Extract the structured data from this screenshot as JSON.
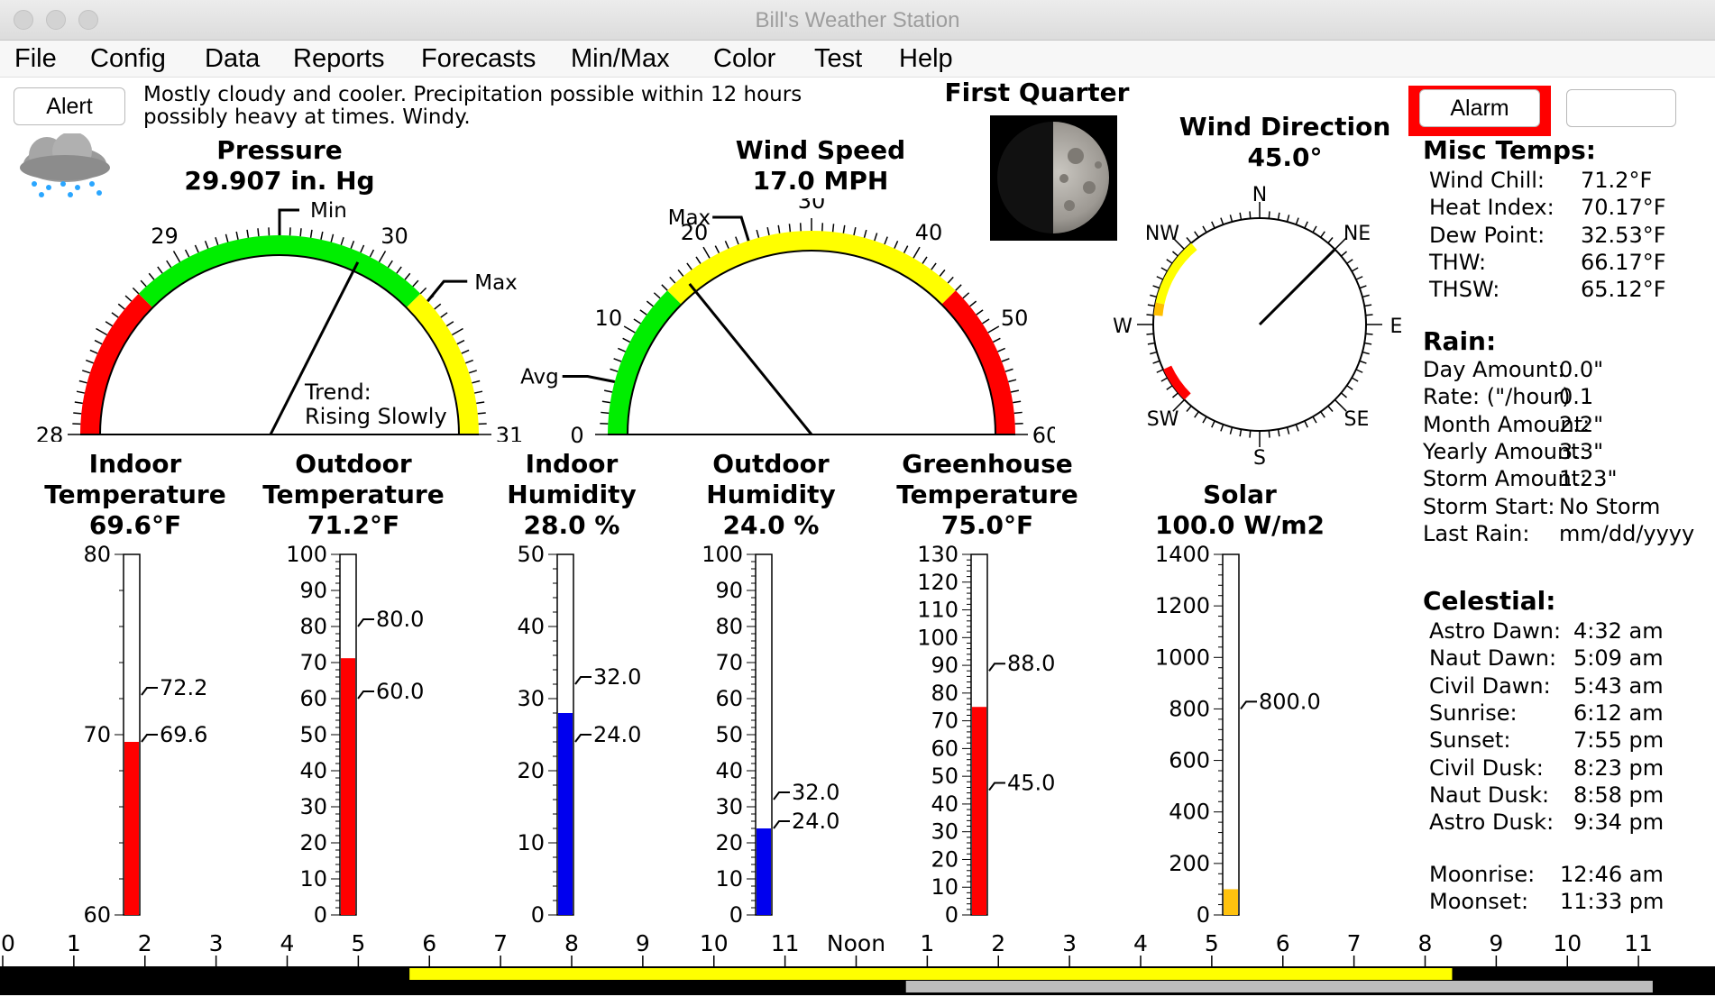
{
  "window": {
    "title": "Bill's Weather Station"
  },
  "menu": [
    "File",
    "Config",
    "Data",
    "Reports",
    "Forecasts",
    "Min/Max",
    "Color",
    "Test",
    "Help"
  ],
  "buttons": {
    "alert": "Alert",
    "alarm": "Alarm",
    "blank": ""
  },
  "forecast": {
    "line1": "Mostly cloudy and cooler. Precipitation possible within 12 hours",
    "line2": "possibly heavy at times. Windy."
  },
  "moon": {
    "phase": "First Quarter"
  },
  "icons": {
    "weather": "rain-cloud-icon",
    "moon": "moon-icon"
  },
  "pressure": {
    "title": "Pressure",
    "value": "29.907 in. Hg",
    "reading": 29.907,
    "scale": {
      "min": 28,
      "max": 31,
      "labels": [
        "28",
        "29",
        "30",
        "31"
      ]
    },
    "min_label": "Min",
    "max_label": "Max",
    "min_mark": 29.5,
    "max_mark": 30.3,
    "bands": [
      {
        "from": 28,
        "to": 28.75,
        "color": "#ff0000"
      },
      {
        "from": 28.75,
        "to": 30.25,
        "color": "#00ee00"
      },
      {
        "from": 30.25,
        "to": 31,
        "color": "#ffff00"
      }
    ],
    "trend_label": "Trend:",
    "trend": "Rising Slowly"
  },
  "wind_speed": {
    "title": "Wind Speed",
    "value": "17.0 MPH",
    "reading": 17.0,
    "scale": {
      "min": 0,
      "max": 60,
      "labels": [
        "0",
        "10",
        "20",
        "30",
        "40",
        "50",
        "60"
      ]
    },
    "max_label": "Max",
    "avg_label": "Avg",
    "max_mark": 24,
    "avg_mark": 5,
    "bands": [
      {
        "from": 0,
        "to": 15,
        "color": "#00ee00"
      },
      {
        "from": 15,
        "to": 45,
        "color": "#ffff00"
      },
      {
        "from": 45,
        "to": 60,
        "color": "#ff0000"
      }
    ]
  },
  "wind_direction": {
    "title": "Wind Direction",
    "value": "45.0°",
    "degrees": 45,
    "labels": [
      "N",
      "NE",
      "E",
      "SE",
      "S",
      "SW",
      "W",
      "NW"
    ],
    "arcs": [
      {
        "from": 275,
        "to": 282,
        "color": "#ffbf00"
      },
      {
        "from": 282,
        "to": 320,
        "color": "#ffff00"
      },
      {
        "from": 225,
        "to": 245,
        "color": "#ff0000"
      }
    ]
  },
  "thermometers": [
    {
      "title1": "Indoor",
      "title2": "Temperature",
      "value": "69.6°F",
      "min": 60,
      "max": 80,
      "ticks": [
        "60",
        "70",
        "80"
      ],
      "tick_values": [
        60,
        70,
        80
      ],
      "reading": 69.6,
      "fill": "#ff0000",
      "mark1": {
        "v": 72.2,
        "label": "72.2"
      },
      "mark2": {
        "v": 69.6,
        "label": "69.6"
      }
    },
    {
      "title1": "Outdoor",
      "title2": "Temperature",
      "value": "71.2°F",
      "min": 0,
      "max": 100,
      "ticks": [
        "0",
        "10",
        "20",
        "30",
        "40",
        "50",
        "60",
        "70",
        "80",
        "90",
        "100"
      ],
      "tick_values": [
        0,
        10,
        20,
        30,
        40,
        50,
        60,
        70,
        80,
        90,
        100
      ],
      "reading": 71.2,
      "fill": "#ff0000",
      "mark1": {
        "v": 80,
        "label": "80.0"
      },
      "mark2": {
        "v": 60,
        "label": "60.0"
      }
    },
    {
      "title1": "Indoor",
      "title2": "Humidity",
      "value": "28.0 %",
      "min": 0,
      "max": 50,
      "ticks": [
        "0",
        "10",
        "20",
        "30",
        "40",
        "50"
      ],
      "tick_values": [
        0,
        10,
        20,
        30,
        40,
        50
      ],
      "reading": 28.0,
      "fill": "#0000ee",
      "mark1": {
        "v": 32,
        "label": "32.0"
      },
      "mark2": {
        "v": 24,
        "label": "24.0"
      }
    },
    {
      "title1": "Outdoor",
      "title2": "Humidity",
      "value": "24.0 %",
      "min": 0,
      "max": 100,
      "ticks": [
        "0",
        "10",
        "20",
        "30",
        "40",
        "50",
        "60",
        "70",
        "80",
        "90",
        "100"
      ],
      "tick_values": [
        0,
        10,
        20,
        30,
        40,
        50,
        60,
        70,
        80,
        90,
        100
      ],
      "reading": 24.0,
      "fill": "#0000ee",
      "mark1": {
        "v": 32,
        "label": "32.0"
      },
      "mark2": {
        "v": 24,
        "label": "24.0"
      }
    },
    {
      "title1": "Greenhouse",
      "title2": "Temperature",
      "value": "75.0°F",
      "min": 0,
      "max": 130,
      "ticks": [
        "0",
        "10",
        "20",
        "30",
        "40",
        "50",
        "60",
        "70",
        "80",
        "90",
        "100",
        "110",
        "120",
        "130"
      ],
      "tick_values": [
        0,
        10,
        20,
        30,
        40,
        50,
        60,
        70,
        80,
        90,
        100,
        110,
        120,
        130
      ],
      "reading": 75.0,
      "fill": "#ff0000",
      "mark1": {
        "v": 88,
        "label": "88.0"
      },
      "mark2": {
        "v": 45,
        "label": "45.0"
      }
    },
    {
      "title1": "",
      "title2": "Solar",
      "value": "100.0 W/m2",
      "min": 0,
      "max": 1400,
      "ticks": [
        "0",
        "200",
        "400",
        "600",
        "800",
        "1000",
        "1200",
        "1400"
      ],
      "tick_values": [
        0,
        200,
        400,
        600,
        800,
        1000,
        1200,
        1400
      ],
      "reading": 100.0,
      "fill": "#ffc20e",
      "mark1": {
        "v": 800,
        "label": "800.0"
      },
      "mark2": null
    }
  ],
  "misc_temps": {
    "heading": "Misc Temps:",
    "rows": [
      {
        "label": "Wind Chill:",
        "value": "71.2°F"
      },
      {
        "label": "Heat Index:",
        "value": "70.17°F"
      },
      {
        "label": "Dew Point:",
        "value": "32.53°F"
      },
      {
        "label": "THW:",
        "value": "66.17°F"
      },
      {
        "label": "THSW:",
        "value": "65.12°F"
      }
    ]
  },
  "rain": {
    "heading": "Rain:",
    "rows": [
      {
        "label": "Day Amount:",
        "value": "0.0\""
      },
      {
        "label": "Rate: (\"/hour)",
        "value": "0.1"
      },
      {
        "label": "Month Amount:",
        "value": "2.2\""
      },
      {
        "label": "Yearly Amount:",
        "value": "3.3\""
      },
      {
        "label": "Storm Amount:",
        "value": "1.23\""
      },
      {
        "label": "Storm Start:",
        "value": "No Storm"
      },
      {
        "label": "Last Rain:",
        "value": "mm/dd/yyyy"
      }
    ]
  },
  "celestial": {
    "heading": "Celestial:",
    "rows": [
      {
        "label": "Astro Dawn:",
        "value": "4:32 am"
      },
      {
        "label": "Naut Dawn:",
        "value": "5:09 am"
      },
      {
        "label": "Civil Dawn:",
        "value": "5:43 am"
      },
      {
        "label": "Sunrise:",
        "value": "6:12 am"
      },
      {
        "label": "Sunset:",
        "value": "7:55 pm"
      },
      {
        "label": "Civil Dusk:",
        "value": "8:23 pm"
      },
      {
        "label": "Naut Dusk:",
        "value": "8:58 pm"
      },
      {
        "label": "Astro Dusk:",
        "value": "9:34 pm"
      }
    ],
    "moon_rows": [
      {
        "label": "Moonrise:",
        "value": "12:46 am"
      },
      {
        "label": "Moonset:",
        "value": "11:33 pm"
      }
    ]
  },
  "timeline": {
    "labels": [
      "0",
      "1",
      "2",
      "3",
      "4",
      "5",
      "6",
      "7",
      "8",
      "9",
      "10",
      "11",
      "Noon",
      "1",
      "2",
      "3",
      "4",
      "5",
      "6",
      "7",
      "8",
      "9",
      "10",
      "11"
    ],
    "daylight_start_hour": 5.72,
    "daylight_end_hour": 20.38,
    "gray_start_hour": 12.7,
    "gray_end_hour": 23.2
  }
}
